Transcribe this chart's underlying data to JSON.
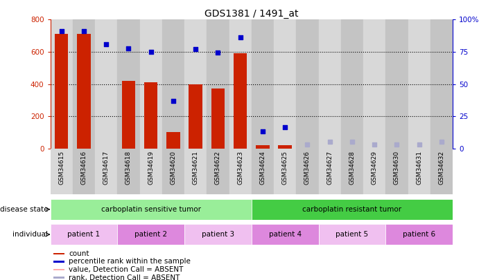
{
  "title": "GDS1381 / 1491_at",
  "samples": [
    "GSM34615",
    "GSM34616",
    "GSM34617",
    "GSM34618",
    "GSM34619",
    "GSM34620",
    "GSM34621",
    "GSM34622",
    "GSM34623",
    "GSM34624",
    "GSM34625",
    "GSM34626",
    "GSM34627",
    "GSM34628",
    "GSM34629",
    "GSM34630",
    "GSM34631",
    "GSM34632"
  ],
  "bar_values": [
    710,
    710,
    0,
    420,
    410,
    100,
    400,
    370,
    590,
    20,
    20,
    0,
    0,
    0,
    0,
    0,
    0,
    0
  ],
  "scatter_values": [
    730,
    730,
    645,
    620,
    600,
    295,
    615,
    595,
    690,
    105,
    130,
    null,
    null,
    null,
    null,
    null,
    null,
    null
  ],
  "scatter_absent_rank": [
    null,
    null,
    null,
    null,
    null,
    null,
    null,
    null,
    null,
    null,
    null,
    3,
    5,
    5,
    3,
    3,
    3,
    5
  ],
  "detection_call": [
    "P",
    "P",
    "P",
    "P",
    "P",
    "P",
    "P",
    "P",
    "P",
    "P",
    "P",
    "A",
    "A",
    "A",
    "A",
    "A",
    "A",
    "A"
  ],
  "ylim_left": [
    0,
    800
  ],
  "ylim_right": [
    0,
    100
  ],
  "yticks_left": [
    0,
    200,
    400,
    600,
    800
  ],
  "yticks_right": [
    0,
    25,
    50,
    75,
    100
  ],
  "disease_state_groups": [
    {
      "label": "carboplatin sensitive tumor",
      "start": 0,
      "end": 9,
      "color": "#99ee99"
    },
    {
      "label": "carboplatin resistant tumor",
      "start": 9,
      "end": 18,
      "color": "#44cc44"
    }
  ],
  "individual_groups": [
    {
      "label": "patient 1",
      "start": 0,
      "end": 3,
      "color": "#f0c0f0"
    },
    {
      "label": "patient 2",
      "start": 3,
      "end": 6,
      "color": "#dd88dd"
    },
    {
      "label": "patient 3",
      "start": 6,
      "end": 9,
      "color": "#f0c0f0"
    },
    {
      "label": "patient 4",
      "start": 9,
      "end": 12,
      "color": "#dd88dd"
    },
    {
      "label": "patient 5",
      "start": 12,
      "end": 15,
      "color": "#f0c0f0"
    },
    {
      "label": "patient 6",
      "start": 15,
      "end": 18,
      "color": "#dd88dd"
    }
  ],
  "legend_items": [
    {
      "label": "count",
      "color": "#cc2200"
    },
    {
      "label": "percentile rank within the sample",
      "color": "#0000cc"
    },
    {
      "label": "value, Detection Call = ABSENT",
      "color": "#ffaaaa"
    },
    {
      "label": "rank, Detection Call = ABSENT",
      "color": "#aaaacc"
    }
  ],
  "bar_color_present": "#cc2200",
  "bar_color_absent": "#ffaaaa",
  "scatter_color_present": "#0000cc",
  "scatter_color_absent": "#aaaacc",
  "background_color": "#ffffff"
}
